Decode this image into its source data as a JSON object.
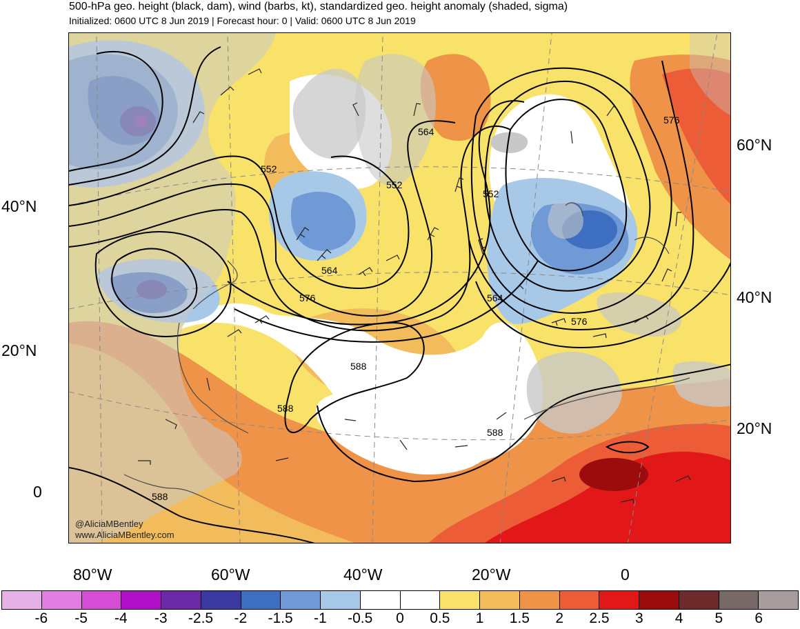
{
  "header": {
    "title": "500-hPa geo. height (black, dam), wind (barbs, kt), standardized geo. height anomaly (shaded, sigma)",
    "subtitle": "Initialized: 0600 UTC 8 Jun 2019 | Forecast hour: 0 | Valid: 0600 UTC 8 Jun 2019"
  },
  "axes": {
    "left_lat": [
      "40°N",
      "20°N",
      "0"
    ],
    "right_lat": [
      "60°N",
      "40°N",
      "20°N"
    ],
    "bottom_lon": [
      "80°W",
      "60°W",
      "40°W",
      "20°W",
      "0"
    ]
  },
  "contours": {
    "labels": [
      "552",
      "552",
      "552",
      "564",
      "564",
      "564",
      "576",
      "576",
      "576",
      "588",
      "588",
      "588",
      "588"
    ]
  },
  "credits": {
    "handle": "@AliciaMBentley",
    "site": "www.AliciaMBentley.com"
  },
  "colorbar": {
    "ticks": [
      "-6",
      "-5",
      "-4",
      "-3",
      "-2.5",
      "-2",
      "-1.5",
      "-1",
      "-0.5",
      "0",
      "0.5",
      "1",
      "1.5",
      "2",
      "2.5",
      "3",
      "4",
      "5",
      "6"
    ],
    "colors": [
      "#e6b3e6",
      "#e27ee2",
      "#d54cd5",
      "#b010c8",
      "#6a2aa8",
      "#3a3aa0",
      "#3e6ec0",
      "#6f9ad6",
      "#a8c8e8",
      "#ffffff",
      "#ffffff",
      "#f8e26a",
      "#f2bc5c",
      "#ef9348",
      "#ec5c36",
      "#e21818",
      "#9c0c0c",
      "#6c2a2a",
      "#786868",
      "#a89c9c"
    ]
  },
  "map_colors": {
    "land": "#c8c8c8",
    "coast": "#4a4a4a"
  }
}
